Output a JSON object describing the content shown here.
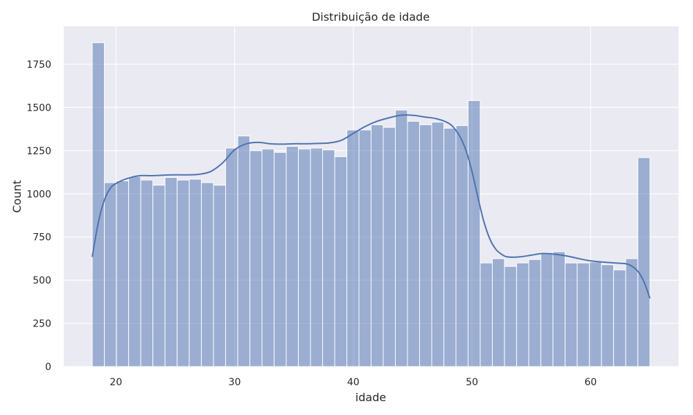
{
  "chart_data": {
    "type": "bar",
    "title": "Distribuição de idade",
    "xlabel": "idade",
    "ylabel": "Count",
    "xlim": [
      15.6,
      67.4
    ],
    "ylim": [
      0,
      1970
    ],
    "x_ticks": [
      20,
      30,
      40,
      50,
      60
    ],
    "y_ticks": [
      0,
      250,
      500,
      750,
      1000,
      1250,
      1500,
      1750
    ],
    "grid": true,
    "background": "#eaeaf2",
    "bar_color": "#4c72b0",
    "bar_alpha": 0.5,
    "kde_color": "#4c72b0",
    "bins": {
      "start": 18,
      "end": 65,
      "counts": [
        1875,
        1065,
        1075,
        1100,
        1080,
        1050,
        1095,
        1080,
        1085,
        1065,
        1050,
        1265,
        1335,
        1250,
        1260,
        1240,
        1275,
        1260,
        1265,
        1255,
        1215,
        1370,
        1370,
        1400,
        1385,
        1485,
        1420,
        1400,
        1415,
        1380,
        1395,
        1540,
        600,
        625,
        580,
        600,
        620,
        660,
        665,
        600,
        600,
        605,
        590,
        560,
        625,
        1210
      ]
    },
    "kde": {
      "x": [
        18,
        18.5,
        19,
        19.5,
        20,
        21,
        22,
        23,
        24,
        25,
        26,
        27,
        28,
        29,
        30,
        31,
        32,
        33,
        34,
        35,
        36,
        37,
        38,
        39,
        40,
        41,
        42,
        43,
        44,
        45,
        46,
        47,
        48,
        48.5,
        49,
        49.5,
        50,
        50.5,
        51,
        51.5,
        52,
        52.5,
        53,
        54,
        55,
        56,
        57,
        58,
        59,
        60,
        61,
        62,
        63,
        63.5,
        64,
        64.5,
        65
      ],
      "y": [
        635,
        830,
        960,
        1030,
        1060,
        1090,
        1105,
        1105,
        1108,
        1110,
        1110,
        1113,
        1130,
        1180,
        1255,
        1290,
        1298,
        1290,
        1288,
        1290,
        1290,
        1292,
        1295,
        1310,
        1350,
        1390,
        1420,
        1440,
        1455,
        1455,
        1445,
        1435,
        1410,
        1380,
        1330,
        1250,
        1130,
        980,
        840,
        740,
        680,
        650,
        635,
        635,
        645,
        655,
        650,
        640,
        625,
        612,
        605,
        600,
        595,
        580,
        550,
        490,
        395
      ]
    }
  }
}
